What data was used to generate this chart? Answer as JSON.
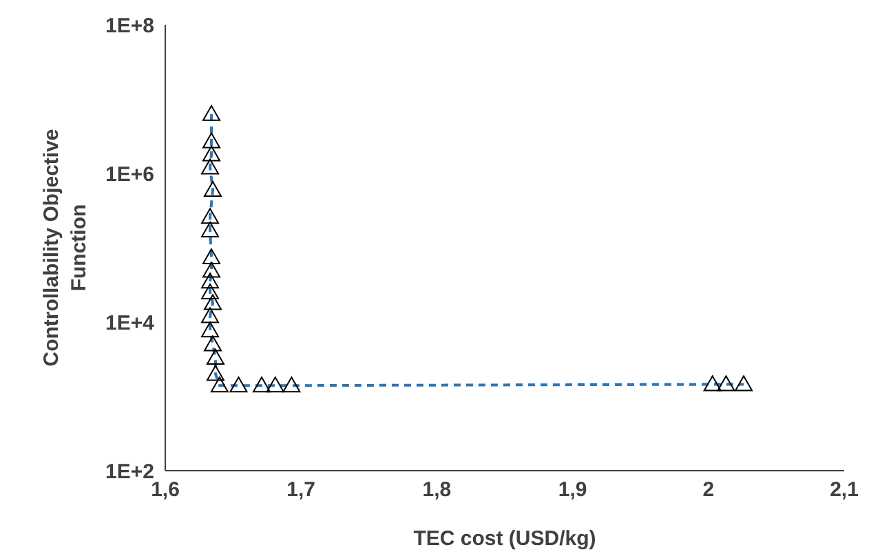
{
  "chart_data": {
    "type": "line",
    "xlabel": "TEC cost (USD/kg)",
    "ylabel": "Controllability Objective Function",
    "log": "y",
    "marker": "triangle",
    "line_style": "dashed",
    "xlim": [
      1.6,
      2.1
    ],
    "xticks": [
      {
        "value": 1.6,
        "label": "1,6"
      },
      {
        "value": 1.7,
        "label": "1,7"
      },
      {
        "value": 1.8,
        "label": "1,8"
      },
      {
        "value": 1.9,
        "label": "1,9"
      },
      2,
      {
        "value": 2.1,
        "label": "2,1"
      }
    ],
    "ylim": [
      100,
      100000000
    ],
    "yticks": [
      {
        "value": 100,
        "label": "1E+2"
      },
      {
        "value": 10000,
        "label": "1E+4"
      },
      {
        "value": 1000000,
        "label": "1E+6"
      },
      {
        "value": 100000000,
        "label": "1E+8"
      }
    ],
    "x": [
      1.634,
      1.634,
      1.634,
      1.633,
      1.635,
      1.633,
      1.633,
      1.634,
      1.634,
      1.633,
      1.633,
      1.635,
      1.633,
      1.633,
      1.635,
      1.637,
      1.637,
      1.64,
      1.654,
      1.671,
      1.681,
      1.693,
      2.003,
      2.013,
      2.026
    ],
    "series": [
      {
        "color": "#2e75b6",
        "values": [
          6300000,
          2700000,
          1800000,
          1200000,
          600000,
          260000,
          170000,
          74000,
          49000,
          35000,
          25000,
          18000,
          12000,
          7700,
          5000,
          3300,
          2000,
          1400,
          1400,
          1400,
          1400,
          1400,
          1450,
          1450,
          1450
        ]
      }
    ]
  }
}
